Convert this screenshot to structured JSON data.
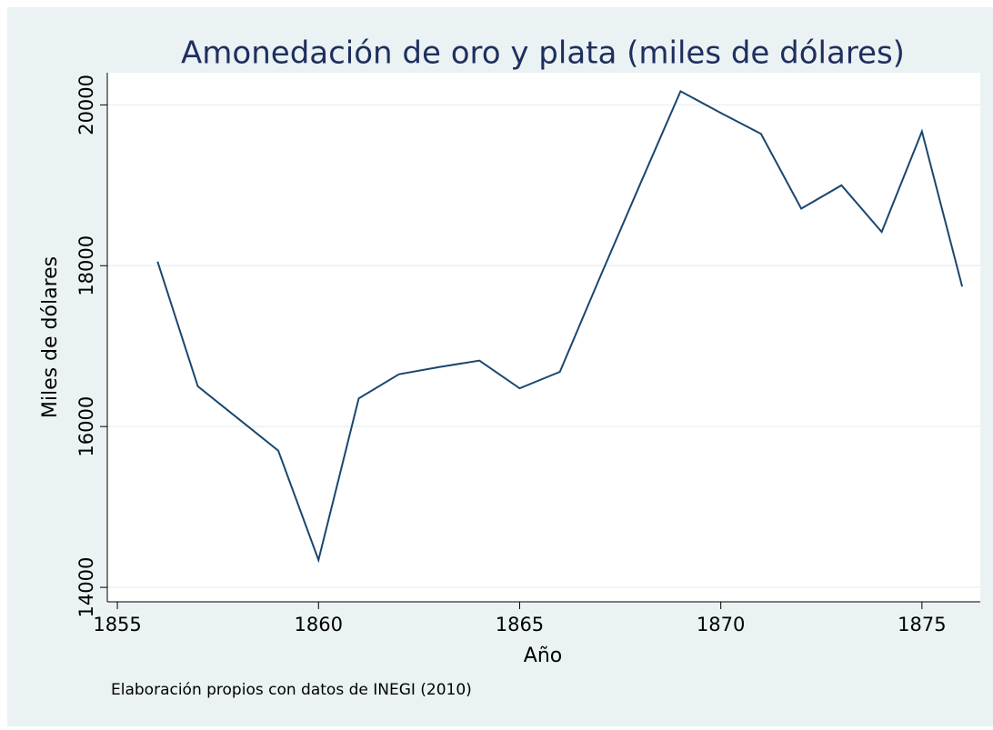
{
  "chart_data": {
    "type": "line",
    "title": "Amonedación de oro y plata (miles de dólares)",
    "x_label": "Año",
    "y_label": "Miles de dólares",
    "note": "Elaboración propios con datos de INEGI (2010)",
    "x": [
      1856,
      1857,
      1858,
      1859,
      1860,
      1861,
      1862,
      1863,
      1864,
      1865,
      1866,
      1867,
      1868,
      1869,
      1870,
      1871,
      1872,
      1873,
      1874,
      1875,
      1876
    ],
    "series": [
      {
        "color": "#1a476f",
        "values": [
          18050,
          16500,
          16100,
          15700,
          14340,
          16350,
          16650,
          16740,
          16820,
          16475,
          16680,
          17860,
          19020,
          20170,
          19900,
          19640,
          18710,
          19000,
          18420,
          19670,
          17740
        ]
      }
    ],
    "xlim": [
      1854.75,
      1876.45
    ],
    "ylim": [
      13820,
      20400
    ],
    "xticks": [
      1855,
      1860,
      1865,
      1870,
      1875
    ],
    "yticks": [
      14000,
      16000,
      18000,
      20000
    ],
    "grid": true
  }
}
